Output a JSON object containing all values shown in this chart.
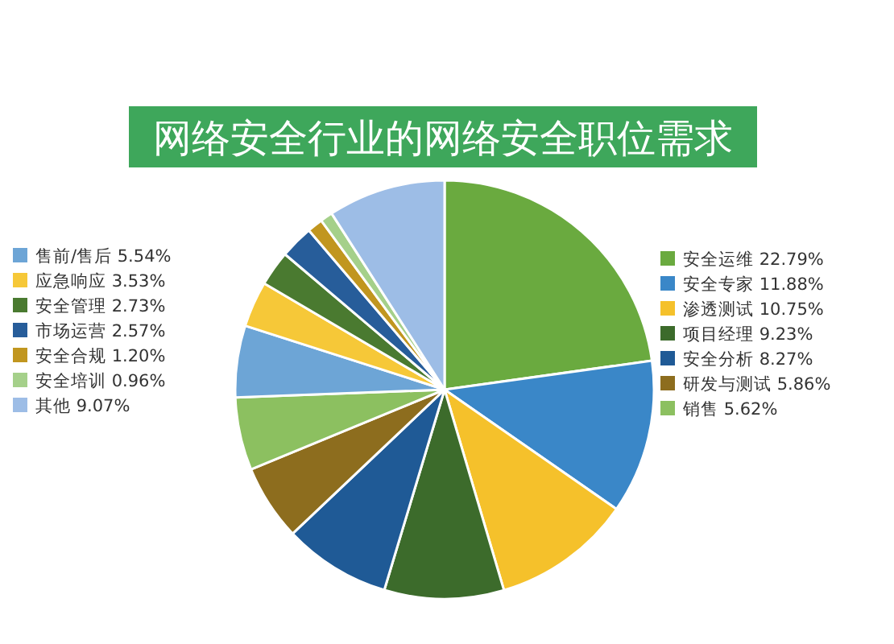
{
  "chart_data": {
    "type": "pie",
    "title": "网络安全行业的网络安全职位需求",
    "categories": [
      "安全运维 22.79%",
      "安全专家 11.88%",
      "渗透测试 10.75%",
      "项目经理 9.23%",
      "安全分析 8.27%",
      "研发与测试 5.86%",
      "销售 5.62%",
      "售前/售后 5.54%",
      "应急响应 3.53%",
      "安全管理 2.73%",
      "市场运营 2.57%",
      "安全合规 1.20%",
      "安全培训 0.96%",
      "其他 9.07%"
    ],
    "values": [
      22.79,
      11.88,
      10.75,
      9.23,
      8.27,
      5.86,
      5.62,
      5.54,
      3.53,
      2.73,
      2.57,
      1.2,
      0.96,
      9.07
    ],
    "colors": [
      "#6aaa3f",
      "#3a87c8",
      "#f5c12b",
      "#3c6b2b",
      "#1f5a96",
      "#8d6d1e",
      "#8cc060",
      "#6da5d6",
      "#f6c838",
      "#4a7a30",
      "#275d9a",
      "#c1961f",
      "#a5d08a",
      "#9dbde6"
    ],
    "legend": "top left"
  }
}
